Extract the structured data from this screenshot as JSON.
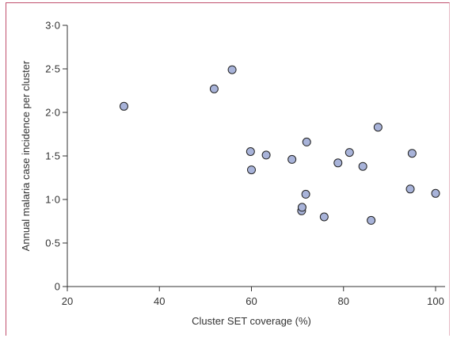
{
  "chart_data": {
    "type": "scatter",
    "title": "",
    "xlabel": "Cluster SET coverage (%)",
    "ylabel": "Annual malaria case incidence per cluster",
    "xlim": [
      20,
      100
    ],
    "ylim": [
      0,
      3.0
    ],
    "xticks": [
      20,
      40,
      60,
      80,
      100
    ],
    "xtick_labels": [
      "20",
      "40",
      "60",
      "80",
      "100"
    ],
    "yticks": [
      0,
      0.5,
      1.0,
      1.5,
      2.0,
      2.5,
      3.0
    ],
    "ytick_labels": [
      "0",
      "0·5",
      "1·0",
      "1·5",
      "2·0",
      "2·5",
      "3·0"
    ],
    "grid": false,
    "marker_fill": "#a8b3d9",
    "marker_edge": "#222222",
    "frame_color": "#c0506e",
    "series": [
      {
        "x": [
          32.3,
          51.9,
          55.8,
          59.8,
          60.0,
          63.2,
          68.8,
          70.9,
          71.0,
          71.8,
          72.0,
          75.8,
          78.8,
          81.3,
          84.2,
          86.0,
          87.5,
          94.5,
          94.9,
          100.0
        ],
        "y": [
          2.07,
          2.27,
          2.49,
          1.55,
          1.34,
          1.51,
          1.46,
          0.87,
          0.91,
          1.06,
          1.66,
          0.8,
          1.42,
          1.54,
          1.38,
          0.76,
          1.83,
          1.12,
          1.53,
          1.07
        ]
      }
    ]
  }
}
